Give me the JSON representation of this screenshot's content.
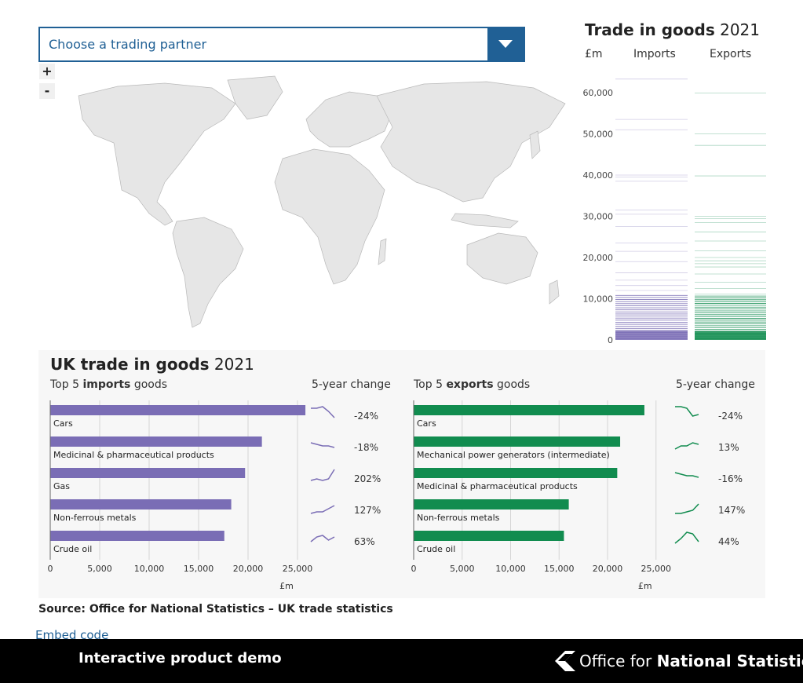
{
  "dropdown": {
    "placeholder": "Choose a trading partner"
  },
  "zoom": {
    "in": "+",
    "out": "-"
  },
  "right_panel": {
    "title_bold": "Trade in goods",
    "title_year": "2021",
    "unit": "£m",
    "col_imports": "Imports",
    "col_exports": "Exports",
    "y_ticks": [
      "60,000",
      "50,000",
      "40,000",
      "30,000",
      "20,000",
      "10,000",
      "0"
    ],
    "import_color": "#7a6db5",
    "export_color": "#118c4f"
  },
  "chart_data": [
    {
      "type": "bar",
      "title": "UK trade in goods 2021",
      "subtitle": "Top 5 imports goods",
      "xlabel": "£m",
      "xlim": [
        0,
        25000
      ],
      "x_ticks": [
        "0",
        "5,000",
        "10,000",
        "15,000",
        "20,000",
        "25,000"
      ],
      "color": "#7a6db5",
      "categories": [
        "Cars",
        "Medicinal & pharmaceutical products",
        "Gas",
        "Non-ferrous metals",
        "Crude oil"
      ],
      "values": [
        25800,
        21400,
        19700,
        18300,
        17600
      ],
      "change_header": "5-year change",
      "changes": [
        "-24%",
        "-18%",
        "202%",
        "127%",
        "63%"
      ]
    },
    {
      "type": "bar",
      "subtitle": "Top 5 exports goods",
      "xlabel": "£m",
      "xlim": [
        0,
        25000
      ],
      "x_ticks": [
        "0",
        "5,000",
        "10,000",
        "15,000",
        "20,000",
        "25,000"
      ],
      "color": "#118c4f",
      "categories": [
        "Cars",
        "Mechanical power generators (intermediate)",
        "Medicinal & pharmaceutical products",
        "Non-ferrous metals",
        "Crude oil"
      ],
      "values": [
        23800,
        21300,
        21000,
        16000,
        15500
      ],
      "change_header": "5-year change",
      "changes": [
        "-24%",
        "13%",
        "-16%",
        "147%",
        "44%"
      ]
    }
  ],
  "sparklines": {
    "imports": [
      [
        0.8,
        0.8,
        0.9,
        0.6,
        0.2
      ],
      [
        0.6,
        0.5,
        0.4,
        0.4,
        0.3
      ],
      [
        0.2,
        0.3,
        0.2,
        0.3,
        0.9
      ],
      [
        0.1,
        0.2,
        0.2,
        0.4,
        0.6
      ],
      [
        0.3,
        0.6,
        0.7,
        0.4,
        0.6
      ]
    ],
    "exports": [
      [
        0.9,
        0.9,
        0.8,
        0.3,
        0.4
      ],
      [
        0.2,
        0.4,
        0.4,
        0.6,
        0.5
      ],
      [
        0.7,
        0.6,
        0.5,
        0.5,
        0.4
      ],
      [
        0.1,
        0.1,
        0.2,
        0.3,
        0.7
      ],
      [
        0.2,
        0.5,
        0.9,
        0.8,
        0.3
      ]
    ]
  },
  "source": "Source: Office for National Statistics – UK trade statistics",
  "embed_link": "Embed code",
  "footer": {
    "demo": "Interactive product demo",
    "brand_light": "Office for",
    "brand_bold": "National Statistics"
  }
}
